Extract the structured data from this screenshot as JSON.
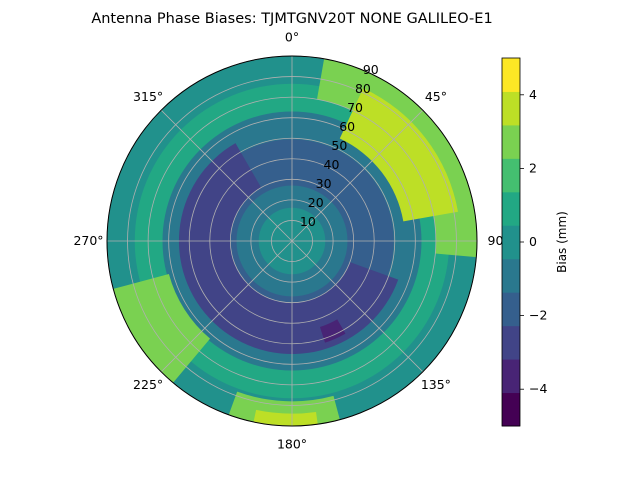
{
  "chart_data": {
    "type": "heatmap",
    "projection": "polar",
    "title": "Antenna Phase Biases: TJMTGNV20T      NONE GALILEO-E1",
    "theta_zero": "top",
    "theta_direction": "clockwise",
    "theta_ticks": [
      {
        "deg": 0,
        "label": "0°"
      },
      {
        "deg": 45,
        "label": "45°"
      },
      {
        "deg": 90,
        "label": "90"
      },
      {
        "deg": 135,
        "label": "135°"
      },
      {
        "deg": 180,
        "label": "180°"
      },
      {
        "deg": 225,
        "label": "225°"
      },
      {
        "deg": 270,
        "label": "270°"
      },
      {
        "deg": 315,
        "label": "315°"
      }
    ],
    "r_ticks": [
      10,
      20,
      30,
      40,
      50,
      60,
      70,
      80,
      90
    ],
    "r_label_angle_deg": 22.5,
    "r_max": 90,
    "grid": true,
    "colorbar": {
      "label": "Bias (mm)",
      "min": -5,
      "max": 5,
      "ticks": [
        -4,
        -2,
        0,
        2,
        4
      ],
      "levels": [
        -5,
        -4.5,
        -4,
        -3.5,
        -3,
        -2.5,
        -2,
        -1.5,
        -1,
        -0.5,
        0,
        0.5,
        1,
        1.5,
        2,
        2.5,
        3,
        3.5,
        4,
        4.5,
        5
      ]
    },
    "level_colors": [
      "#440154",
      "#482475",
      "#414487",
      "#355f8d",
      "#2a788e",
      "#21918c",
      "#22a884",
      "#44bf70",
      "#7ad151",
      "#bddf26",
      "#fde725"
    ],
    "contour_levels": [
      -5,
      -4,
      -3,
      -2,
      -1,
      0,
      1,
      2,
      3,
      4,
      5
    ],
    "regions": [
      {
        "value": 2.4,
        "r_range": [
          70,
          90
        ],
        "az_range": [
          10,
          95
        ],
        "note": ""
      },
      {
        "value": 3.4,
        "r_range": [
          55,
          82
        ],
        "az_range": [
          25,
          80
        ]
      },
      {
        "value": 2.4,
        "r_range": [
          62,
          90
        ],
        "az_range": [
          220,
          255
        ]
      },
      {
        "value": 2.4,
        "r_range": [
          78,
          90
        ],
        "az_range": [
          165,
          200
        ]
      },
      {
        "value": 3.2,
        "r_range": [
          84,
          90
        ],
        "az_range": [
          172,
          192
        ]
      },
      {
        "value": -2.6,
        "r_range": [
          30,
          55
        ],
        "az_range": [
          110,
          330
        ]
      },
      {
        "value": -3.6,
        "r_range": [
          44,
          52
        ],
        "az_range": [
          150,
          162
        ]
      }
    ]
  }
}
